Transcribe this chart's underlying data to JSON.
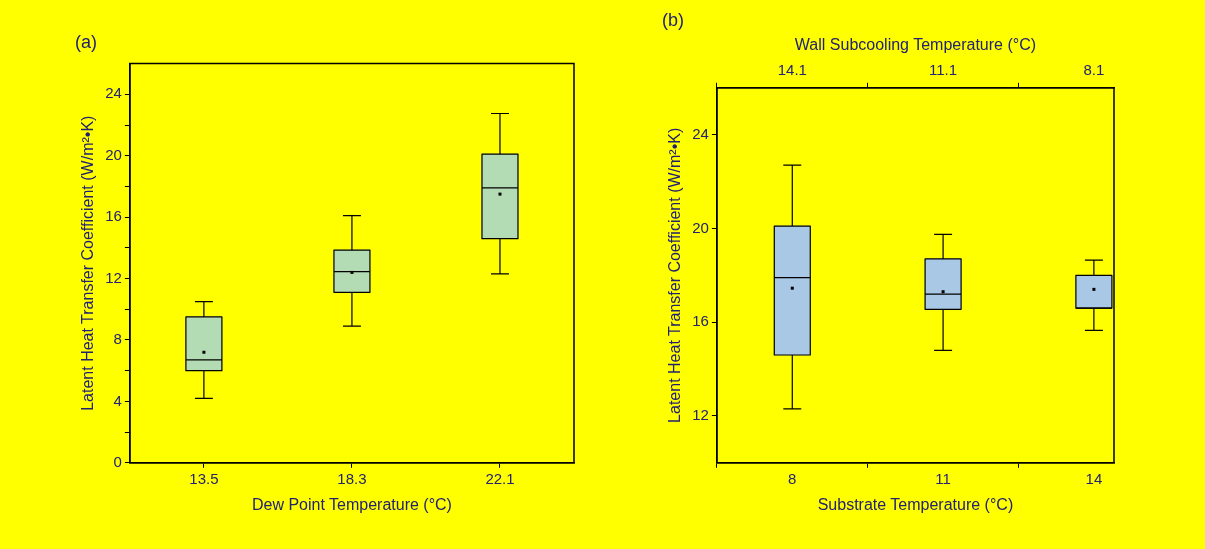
{
  "chart_data": [
    {
      "type": "box",
      "title": "(a)",
      "xlabel": "Dew Point Temperature (°C)",
      "ylabel": "Latent Heat Transfer Coefficient (W/m²•K)",
      "categories": [
        "13.5",
        "18.3",
        "22.1"
      ],
      "ylim": [
        0,
        26
      ],
      "yticks": [
        0,
        {
          "value": 2,
          "label": null
        },
        4,
        {
          "value": 6,
          "label": null
        },
        8,
        {
          "value": 10,
          "label": null
        },
        12,
        {
          "value": 14,
          "label": null
        },
        16,
        {
          "value": 18,
          "label": null
        },
        20,
        {
          "value": 22,
          "label": null
        },
        24
      ],
      "series": [
        {
          "color": "#b4dcb4",
          "boxes": [
            {
              "low": 4.2,
              "q1": 6.0,
              "median": 6.7,
              "q3": 9.5,
              "high": 10.5,
              "mean": 7.2
            },
            {
              "low": 8.9,
              "q1": 11.1,
              "median": 12.45,
              "q3": 13.85,
              "high": 16.1,
              "mean": 12.4
            },
            {
              "low": 12.3,
              "q1": 14.6,
              "median": 17.9,
              "q3": 20.1,
              "high": 22.75,
              "mean": 17.5
            }
          ]
        }
      ]
    },
    {
      "type": "box",
      "title": "(b)",
      "xlabel": "Substrate Temperature (°C)",
      "x2label": "Wall Subcooling Temperature (°C)",
      "ylabel": "Latent Heat Transfer Coefficient (W/m²•K)",
      "x": [
        8,
        11,
        14
      ],
      "xlim": [
        6.5,
        14.4
      ],
      "xticks": [
        8,
        11,
        14
      ],
      "x2lim": [
        15.6,
        7.7
      ],
      "x2ticks": [
        14.1,
        11.1,
        8.1
      ],
      "ylim": [
        10,
        26
      ],
      "yticks": [
        12,
        16,
        20,
        24
      ],
      "series": [
        {
          "color": "#a9c8e6",
          "boxes": [
            {
              "low": 12.3,
              "q1": 14.6,
              "median": 17.9,
              "q3": 20.1,
              "high": 22.7,
              "mean": 17.45
            },
            {
              "low": 14.8,
              "q1": 16.55,
              "median": 17.2,
              "q3": 18.7,
              "high": 19.75,
              "mean": 17.3
            },
            {
              "low": 15.65,
              "q1": 16.6,
              "median": 16.6,
              "q3": 18.0,
              "high": 18.65,
              "mean": 17.4
            }
          ]
        }
      ]
    }
  ]
}
